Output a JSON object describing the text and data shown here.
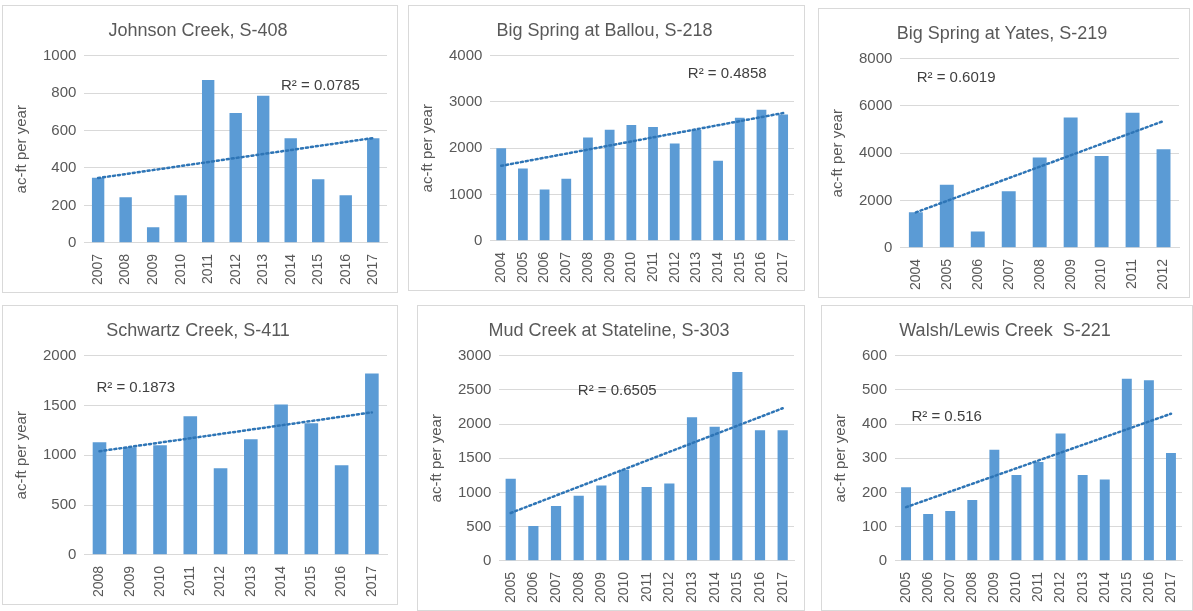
{
  "chart_data": [
    {
      "type": "bar",
      "title": "Johnson Creek, S-408",
      "ylabel": "ac-ft per year",
      "categories": [
        "2007",
        "2008",
        "2009",
        "2010",
        "2011",
        "2012",
        "2013",
        "2014",
        "2015",
        "2016",
        "2017"
      ],
      "ylim": [
        0,
        1000
      ],
      "yticks": [
        0,
        200,
        400,
        600,
        800,
        1000
      ],
      "grid": "y",
      "annotations": [
        "R² = 0.0785"
      ],
      "series": [
        {
          "color": "#5b9bd5",
          "values": [
            348,
            244,
            84,
            254,
            870,
            694,
            786,
            558,
            340,
            254,
            558
          ]
        },
        {
          "type": "line",
          "color": "#2e75b6",
          "line_style": "dotted",
          "marker": "none",
          "values": [
            346,
            null,
            null,
            null,
            null,
            null,
            null,
            null,
            null,
            null,
            560
          ]
        }
      ]
    },
    {
      "type": "bar",
      "title": "Big Spring at Ballou, S-218",
      "ylabel": "ac-ft per year",
      "categories": [
        "2004",
        "2005",
        "2006",
        "2007",
        "2008",
        "2009",
        "2010",
        "2011",
        "2012",
        "2013",
        "2014",
        "2015",
        "2016",
        "2017"
      ],
      "ylim": [
        0,
        4000
      ],
      "yticks": [
        0,
        1000,
        2000,
        3000,
        4000
      ],
      "grid": "y",
      "annotations": [
        "R² = 0.4858"
      ],
      "series": [
        {
          "color": "#5b9bd5",
          "values": [
            2000,
            1560,
            1110,
            1340,
            2230,
            2400,
            2500,
            2460,
            2100,
            2400,
            1730,
            2660,
            2830,
            2730
          ]
        },
        {
          "type": "line",
          "color": "#2e75b6",
          "line_style": "dotted",
          "marker": "none",
          "values": [
            1620,
            null,
            null,
            null,
            null,
            null,
            null,
            null,
            null,
            null,
            null,
            null,
            null,
            2760
          ]
        }
      ]
    },
    {
      "type": "bar",
      "title": "Big Spring at Yates, S-219",
      "ylabel": "ac-ft per year",
      "categories": [
        "2004",
        "2005",
        "2006",
        "2007",
        "2008",
        "2009",
        "2010",
        "2011",
        "2012"
      ],
      "ylim": [
        0,
        8000
      ],
      "yticks": [
        0,
        2000,
        4000,
        6000,
        8000
      ],
      "grid": "y",
      "annotations": [
        "R² = 0.6019"
      ],
      "series": [
        {
          "color": "#5b9bd5",
          "values": [
            1510,
            2670,
            690,
            2390,
            3820,
            5510,
            3880,
            5710,
            4170
          ]
        },
        {
          "type": "line",
          "color": "#2e75b6",
          "line_style": "dotted",
          "marker": "none",
          "values": [
            1500,
            null,
            null,
            null,
            null,
            null,
            null,
            null,
            5360
          ]
        }
      ]
    },
    {
      "type": "bar",
      "title": "Schwartz Creek, S-411",
      "ylabel": "ac-ft per year",
      "categories": [
        "2008",
        "2009",
        "2010",
        "2011",
        "2012",
        "2013",
        "2014",
        "2015",
        "2016",
        "2017"
      ],
      "ylim": [
        0,
        2000
      ],
      "yticks": [
        0,
        500,
        1000,
        1500,
        2000
      ],
      "grid": "y",
      "annotations": [
        "R² = 0.1873"
      ],
      "series": [
        {
          "color": "#5b9bd5",
          "values": [
            1130,
            1080,
            1100,
            1390,
            870,
            1160,
            1510,
            1320,
            900,
            1820
          ]
        },
        {
          "type": "line",
          "color": "#2e75b6",
          "line_style": "dotted",
          "marker": "none",
          "values": [
            1040,
            null,
            null,
            null,
            null,
            null,
            null,
            null,
            null,
            1430
          ]
        }
      ]
    },
    {
      "type": "bar",
      "title": "Mud Creek at Stateline, S-303",
      "ylabel": "ac-ft per year",
      "categories": [
        "2005",
        "2006",
        "2007",
        "2008",
        "2009",
        "2010",
        "2011",
        "2012",
        "2013",
        "2014",
        "2015",
        "2016",
        "2017"
      ],
      "ylim": [
        0,
        3000
      ],
      "yticks": [
        0,
        500,
        1000,
        1500,
        2000,
        2500,
        3000
      ],
      "grid": "y",
      "annotations": [
        "R² = 0.6505"
      ],
      "series": [
        {
          "color": "#5b9bd5",
          "values": [
            1200,
            510,
            800,
            950,
            1100,
            1330,
            1080,
            1130,
            2100,
            1960,
            2760,
            1910,
            1910
          ]
        },
        {
          "type": "line",
          "color": "#2e75b6",
          "line_style": "dotted",
          "marker": "none",
          "values": [
            700,
            null,
            null,
            null,
            null,
            null,
            null,
            null,
            null,
            null,
            null,
            null,
            2230
          ]
        }
      ]
    },
    {
      "type": "bar",
      "title": "Walsh/Lewis Creek  S-221",
      "ylabel": "ac-ft per year",
      "categories": [
        "2005",
        "2006",
        "2007",
        "2008",
        "2009",
        "2010",
        "2011",
        "2012",
        "2013",
        "2014",
        "2015",
        "2016",
        "2017"
      ],
      "ylim": [
        0,
        600
      ],
      "yticks": [
        0,
        100,
        200,
        300,
        400,
        500,
        600
      ],
      "grid": "y",
      "annotations": [
        "R² = 0.516"
      ],
      "series": [
        {
          "color": "#5b9bd5",
          "values": [
            215,
            137,
            146,
            178,
            325,
            251,
            289,
            372,
            251,
            238,
            532,
            528,
            315
          ]
        },
        {
          "type": "line",
          "color": "#2e75b6",
          "line_style": "dotted",
          "marker": "none",
          "values": [
            157,
            null,
            null,
            null,
            null,
            null,
            null,
            null,
            null,
            null,
            null,
            null,
            430
          ]
        }
      ]
    }
  ]
}
